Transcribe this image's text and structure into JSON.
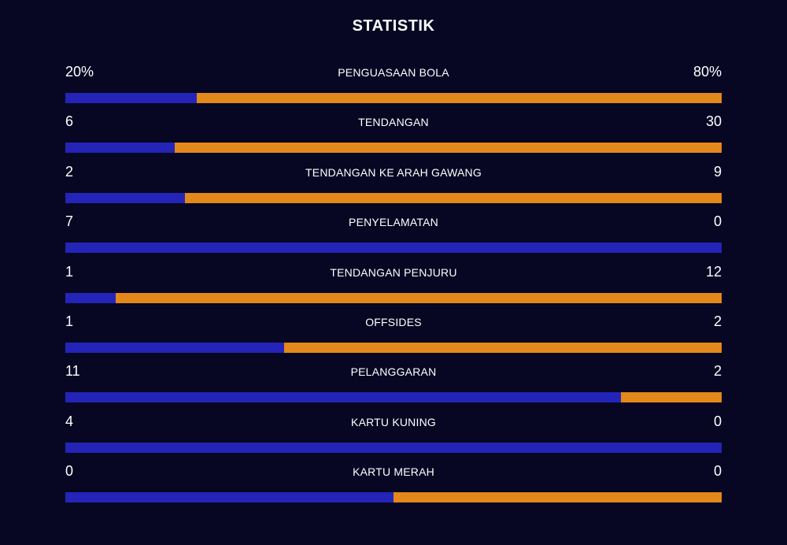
{
  "title": "STATISTIK",
  "colors": {
    "background": "#070723",
    "home_bar": "#2424b8",
    "away_bar": "#e3881a",
    "text": "#ffffff"
  },
  "stats": [
    {
      "label": "PENGUASAAN BOLA",
      "home": "20%",
      "away": "80%",
      "home_share": 0.2
    },
    {
      "label": "TENDANGAN",
      "home": "6",
      "away": "30",
      "home_share": 0.1667
    },
    {
      "label": "TENDANGAN KE ARAH GAWANG",
      "home": "2",
      "away": "9",
      "home_share": 0.1818
    },
    {
      "label": "PENYELAMATAN",
      "home": "7",
      "away": "0",
      "home_share": 1.0
    },
    {
      "label": "TENDANGAN PENJURU",
      "home": "1",
      "away": "12",
      "home_share": 0.0769
    },
    {
      "label": "OFFSIDES",
      "home": "1",
      "away": "2",
      "home_share": 0.3333
    },
    {
      "label": "PELANGGARAN",
      "home": "11",
      "away": "2",
      "home_share": 0.8462
    },
    {
      "label": "KARTU KUNING",
      "home": "4",
      "away": "0",
      "home_share": 1.0
    },
    {
      "label": "KARTU MERAH",
      "home": "0",
      "away": "0",
      "home_share": 0.5
    }
  ]
}
